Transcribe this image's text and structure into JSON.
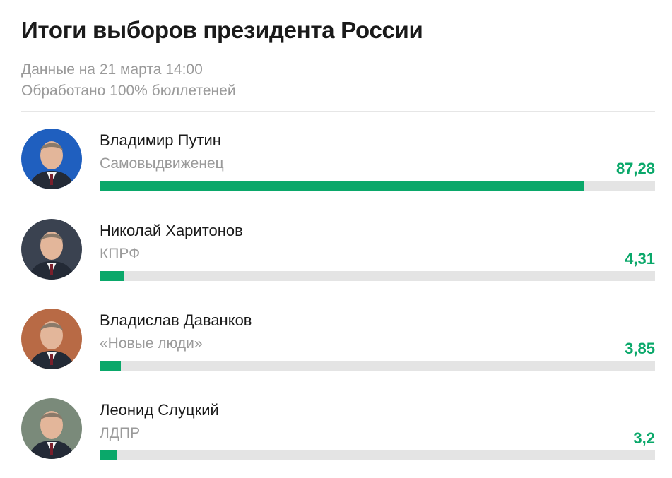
{
  "title": "Итоги выборов президента России",
  "meta": {
    "date_line": "Данные на 21 марта 14:00",
    "processed_line": "Обработано 100% бюллетеней"
  },
  "colors": {
    "accent": "#0aa86a",
    "track": "#e4e4e4",
    "muted_text": "#9a9a9a"
  },
  "chart_data": {
    "type": "bar",
    "orientation": "horizontal",
    "unit": "percent",
    "xlim": [
      0,
      100
    ],
    "grid": false,
    "categories": [
      "Владимир Путин",
      "Николай Харитонов",
      "Владислав Даванков",
      "Леонид Слуцкий"
    ],
    "values": [
      87.28,
      4.31,
      3.85,
      3.2
    ],
    "candidates": [
      {
        "name": "Владимир Путин",
        "party": "Самовыдвиженец",
        "value": 87.28,
        "value_label": "87,28",
        "avatar_icon": "portrait-photo-icon",
        "avatar_bg": "#1f5fbf"
      },
      {
        "name": "Николай Харитонов",
        "party": "КПРФ",
        "value": 4.31,
        "value_label": "4,31",
        "avatar_icon": "portrait-photo-icon",
        "avatar_bg": "#3a4250"
      },
      {
        "name": "Владислав Даванков",
        "party": "«Новые люди»",
        "value": 3.85,
        "value_label": "3,85",
        "avatar_icon": "portrait-photo-icon",
        "avatar_bg": "#b86a45"
      },
      {
        "name": "Леонид Слуцкий",
        "party": "ЛДПР",
        "value": 3.2,
        "value_label": "3,2",
        "avatar_icon": "portrait-photo-icon",
        "avatar_bg": "#7a8a7a"
      }
    ]
  }
}
